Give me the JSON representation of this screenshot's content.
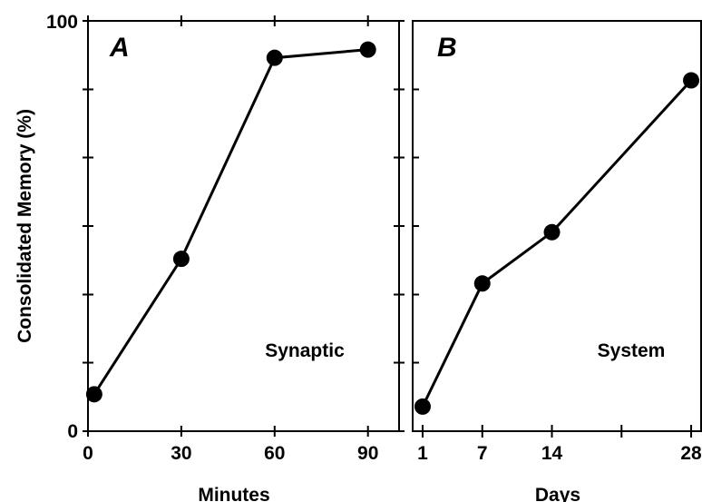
{
  "chart_data": [
    {
      "type": "line",
      "panel_letter": "A",
      "annotation": "Synaptic",
      "xlabel": "Minutes",
      "ylabel": "Consolidated Memory (%)",
      "x_ticks": [
        "0",
        "30",
        "60",
        "90"
      ],
      "x_tick_values": [
        0,
        30,
        60,
        90
      ],
      "y_tick_labels": [
        "0",
        "100"
      ],
      "y_tick_values": [
        0,
        16.7,
        33.3,
        50,
        66.7,
        83.3,
        100
      ],
      "xlim": [
        0,
        100
      ],
      "ylim": [
        0,
        100
      ],
      "series": [
        {
          "x": [
            2,
            30,
            60,
            90
          ],
          "y": [
            9,
            42,
            91,
            93
          ]
        }
      ]
    },
    {
      "type": "line",
      "panel_letter": "B",
      "annotation": "System",
      "xlabel": "Days",
      "ylabel": "",
      "x_ticks": [
        "1",
        "7",
        "14",
        "",
        "28"
      ],
      "x_tick_values": [
        1,
        7,
        14,
        21,
        28
      ],
      "x_ticks_no_label": [
        21
      ],
      "y_tick_values": [
        16.7,
        33.3,
        50,
        66.7,
        83.3
      ],
      "xlim": [
        0,
        29
      ],
      "ylim": [
        0,
        100
      ],
      "series": [
        {
          "x": [
            1,
            7,
            14,
            28
          ],
          "y": [
            6,
            36,
            48.5,
            85.5
          ]
        }
      ]
    }
  ]
}
